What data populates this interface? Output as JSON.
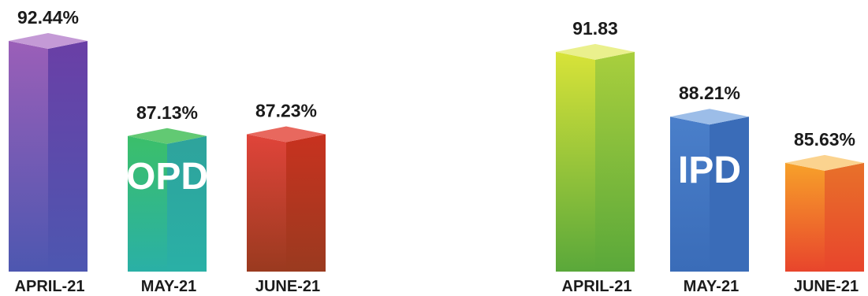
{
  "chart_data": [
    {
      "type": "bar",
      "title": "OPD",
      "categories": [
        "APRIL-21",
        "MAY-21",
        "JUNE-21"
      ],
      "values": [
        92.44,
        87.13,
        87.23
      ],
      "value_labels": [
        "92.44%",
        "87.13%",
        "87.23%"
      ],
      "ylim": [
        80,
        93
      ],
      "grid": false,
      "colors": [
        {
          "light": "#9b5fb8",
          "dark": "#6a3fa6",
          "top": "#c49ad6",
          "grad": "#4d57b0"
        },
        {
          "light": "#3bbf6a",
          "dark": "#2ea39c",
          "top": "#62c973",
          "grad": "#2ab0a6"
        },
        {
          "light": "#e0443a",
          "dark": "#c8321f",
          "top": "#e8685e",
          "grad": "#9a3a1f"
        }
      ]
    },
    {
      "type": "bar",
      "title": "IPD",
      "categories": [
        "APRIL-21",
        "MAY-21",
        "JUNE-21"
      ],
      "values": [
        91.83,
        88.21,
        85.63
      ],
      "value_labels": [
        "91.83",
        "88.21%",
        "85.63%"
      ],
      "ylim": [
        80,
        93
      ],
      "grid": false,
      "colors": [
        {
          "light": "#d8e339",
          "dark": "#a9cf3d",
          "top": "#eaf08d",
          "grad": "#5aa83a"
        },
        {
          "light": "#4a7fca",
          "dark": "#3a6cb8",
          "top": "#9cbde8",
          "grad": "#3a6cb8"
        },
        {
          "light": "#f7a12a",
          "dark": "#e8712a",
          "top": "#fbd38f",
          "grad": "#e8452c"
        }
      ]
    }
  ]
}
